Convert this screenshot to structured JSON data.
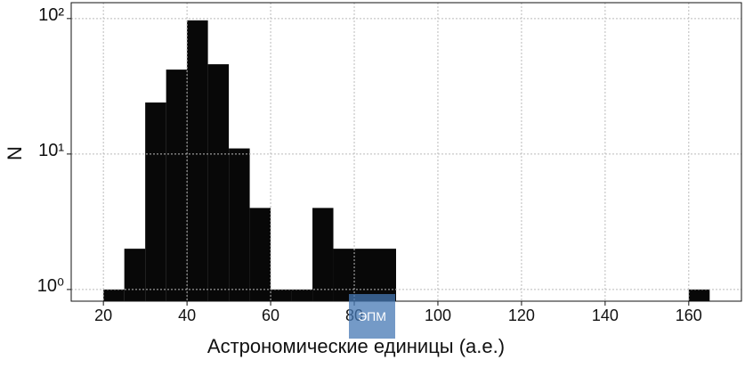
{
  "chart_data": {
    "type": "histogram",
    "xlabel": "Астрономические единицы (а.е.)",
    "ylabel": "N",
    "bins": [
      20,
      25,
      30,
      35,
      40,
      45,
      50,
      55,
      60,
      65,
      70,
      75,
      80,
      85,
      90,
      95,
      100,
      105,
      110,
      115,
      120,
      125,
      130,
      135,
      140,
      145,
      150,
      155,
      160,
      165
    ],
    "values": [
      1,
      2,
      24,
      42,
      97,
      46,
      11,
      4,
      1,
      1,
      4,
      2,
      2,
      2,
      0,
      0,
      0,
      0,
      0,
      0,
      0,
      0,
      0,
      0,
      0,
      0,
      0,
      0,
      1
    ],
    "color": "#080808",
    "xlim": [
      12.3,
      172.6
    ],
    "xticks": [
      20,
      40,
      60,
      80,
      100,
      120,
      140,
      160
    ],
    "ylim": [
      0.82,
      131
    ],
    "yscale": "log",
    "yticks": [
      {
        "value": 1,
        "label": "10⁰"
      },
      {
        "value": 10,
        "label": "10¹"
      },
      {
        "value": 100,
        "label": "10²"
      }
    ],
    "grid": true
  },
  "overlay_label": "ЭПМ"
}
